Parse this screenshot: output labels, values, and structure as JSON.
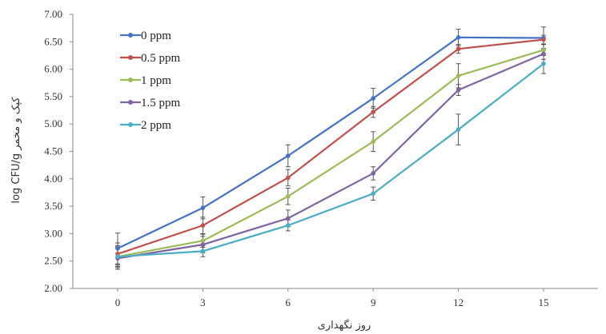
{
  "chart_data": {
    "type": "line",
    "xlabel": "روز نگهداری",
    "ylabel": "log CFU/g کپک و مخمر",
    "x": [
      0,
      3,
      6,
      9,
      12,
      15
    ],
    "x_tick_labels": [
      "0",
      "3",
      "6",
      "9",
      "12",
      "15"
    ],
    "ylim": [
      2.0,
      7.0
    ],
    "y_tick_labels": [
      "2.00",
      "2.50",
      "3.00",
      "3.50",
      "4.00",
      "4.50",
      "5.00",
      "5.50",
      "6.00",
      "6.50",
      "7.00"
    ],
    "grid": false,
    "legend_position": "top-left",
    "error_bars": true,
    "series": [
      {
        "name": "0  ppm",
        "color": "#4472C4",
        "values": [
          2.73,
          3.47,
          4.42,
          5.47,
          6.58,
          6.57
        ],
        "errors": [
          0.28,
          0.2,
          0.2,
          0.18,
          0.15,
          0.2
        ]
      },
      {
        "name": "0.5 ppm",
        "color": "#C0504D",
        "values": [
          2.63,
          3.15,
          4.02,
          5.22,
          6.37,
          6.54
        ],
        "errors": [
          0.2,
          0.15,
          0.15,
          0.1,
          0.08,
          0.08
        ]
      },
      {
        "name": "1 ppm",
        "color": "#9BBB59",
        "values": [
          2.58,
          2.87,
          3.68,
          4.68,
          5.88,
          6.35
        ],
        "errors": [
          0.18,
          0.12,
          0.15,
          0.18,
          0.22,
          0.1
        ]
      },
      {
        "name": "1.5 ppm",
        "color": "#8064A2",
        "values": [
          2.55,
          2.8,
          3.28,
          4.1,
          5.62,
          6.28
        ],
        "errors": [
          0.2,
          0.15,
          0.15,
          0.12,
          0.1,
          0.1
        ]
      },
      {
        "name": "2 ppm",
        "color": "#4BACC6",
        "values": [
          2.58,
          2.68,
          3.15,
          3.73,
          4.9,
          6.1
        ],
        "errors": [
          0.2,
          0.1,
          0.1,
          0.12,
          0.28,
          0.18
        ]
      }
    ]
  }
}
